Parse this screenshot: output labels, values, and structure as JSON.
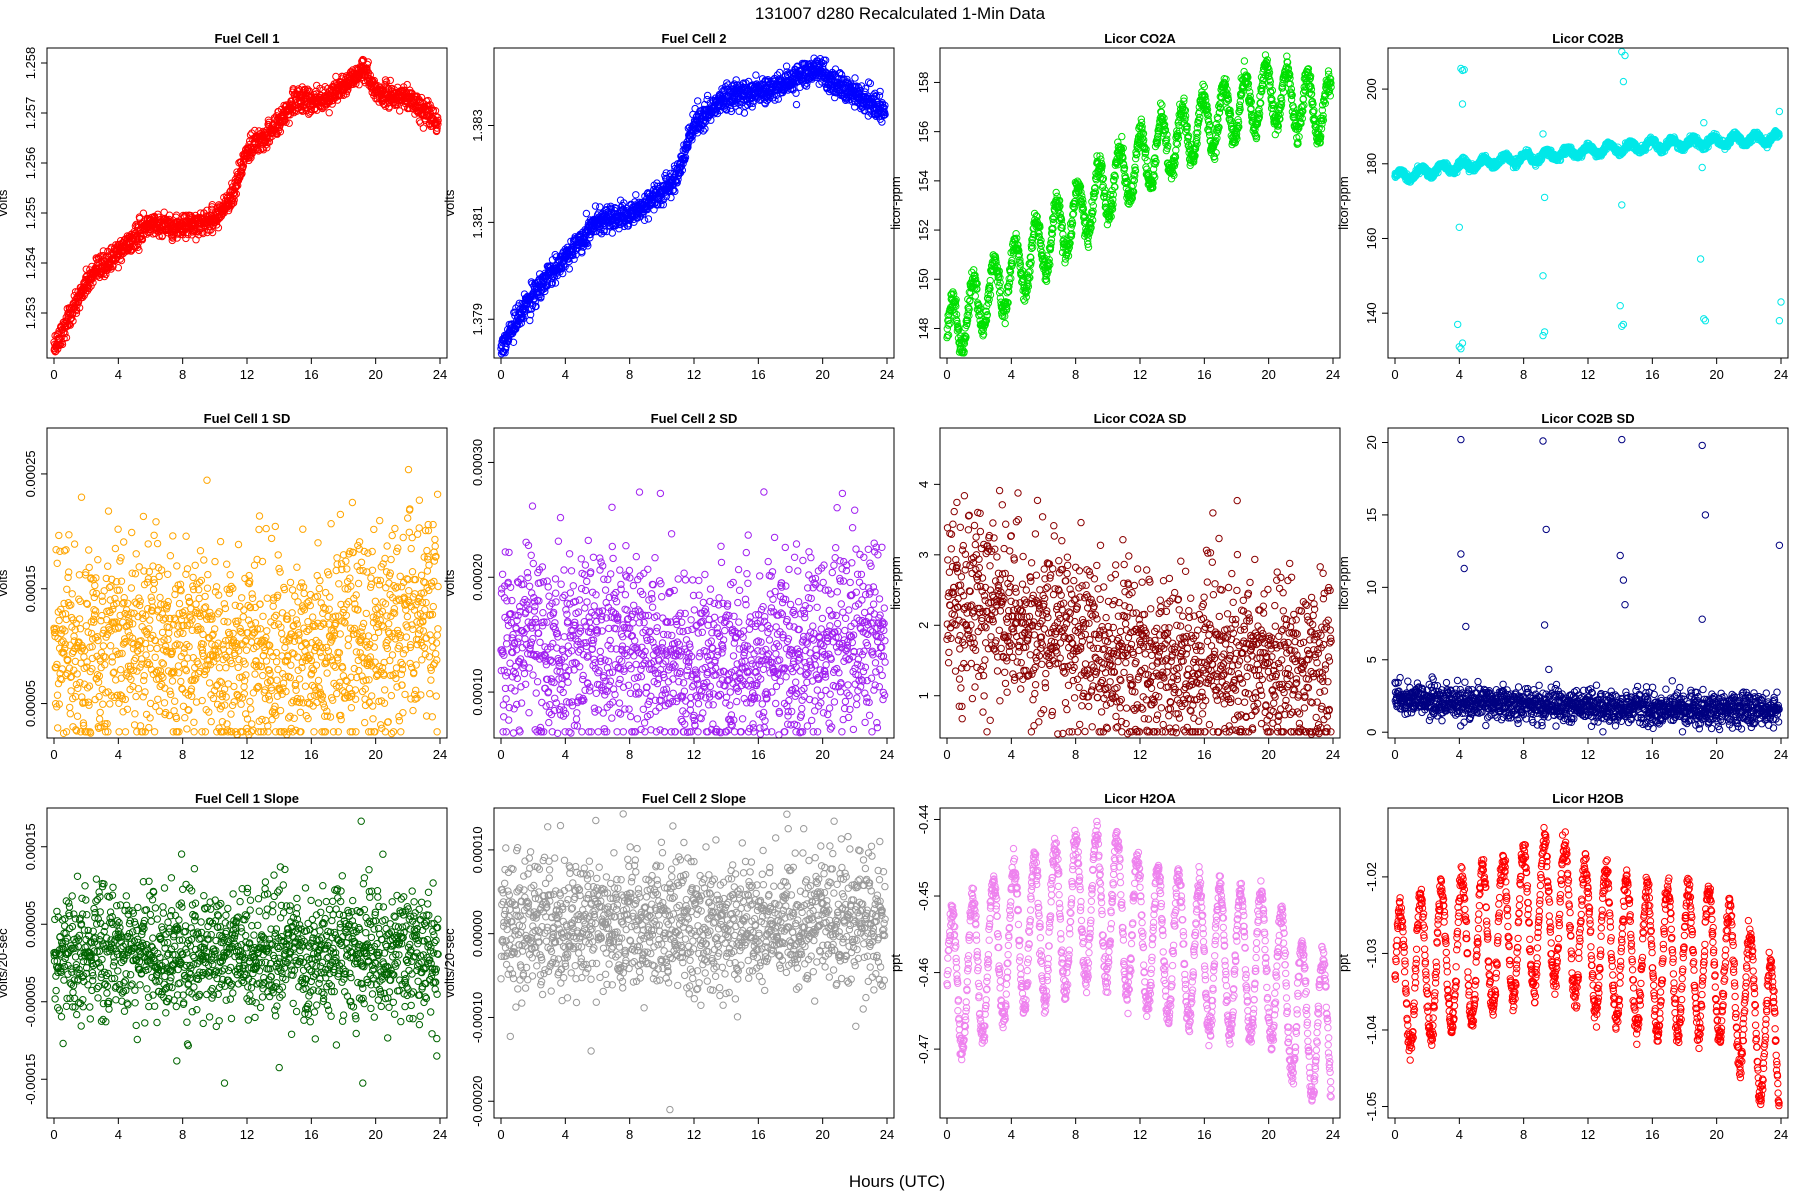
{
  "figure": {
    "title": "131007    d280    Recalculated 1-Min Data",
    "xlabel": "Hours (UTC)"
  },
  "chart_data": [
    {
      "type": "scatter",
      "title": "Fuel Cell 1",
      "ylabel": "volts",
      "color": "#ff0000",
      "xlim": [
        0,
        24
      ],
      "ylim": [
        1.2521,
        1.2583
      ],
      "xticks": [
        0,
        4,
        8,
        12,
        16,
        20,
        24
      ],
      "yticks": [
        1.253,
        1.254,
        1.255,
        1.256,
        1.257,
        1.258
      ],
      "yticklabels": [
        "1.253",
        "1.254",
        "1.255",
        "1.256",
        "1.257",
        "1.258"
      ],
      "x": [
        0,
        2,
        4,
        6,
        8,
        10,
        11,
        12,
        14,
        15,
        16,
        18,
        19.2,
        20,
        22,
        23.8
      ],
      "y": [
        1.2523,
        1.2536,
        1.2542,
        1.2548,
        1.2547,
        1.2549,
        1.2553,
        1.2562,
        1.2568,
        1.2573,
        1.2572,
        1.2575,
        1.2579,
        1.2574,
        1.2573,
        1.2568
      ],
      "noise": 0.0002,
      "trend_points": true
    },
    {
      "type": "scatter",
      "title": "Fuel Cell 2",
      "ylabel": "volts",
      "color": "#0000ff",
      "xlim": [
        0,
        24
      ],
      "ylim": [
        1.3782,
        1.3846
      ],
      "xticks": [
        0,
        4,
        8,
        12,
        16,
        20,
        24
      ],
      "yticks": [
        1.379,
        1.381,
        1.383
      ],
      "yticklabels": [
        "1.379",
        "1.381",
        "1.383"
      ],
      "x": [
        0,
        2,
        4,
        6,
        8,
        10,
        11,
        12,
        14,
        16,
        18,
        19.5,
        21,
        23.8
      ],
      "y": [
        1.3784,
        1.3795,
        1.3803,
        1.381,
        1.3812,
        1.3816,
        1.382,
        1.383,
        1.3836,
        1.3837,
        1.3839,
        1.3842,
        1.3838,
        1.3833
      ],
      "noise": 0.00022,
      "trend_points": true
    },
    {
      "type": "scatter",
      "title": "Licor CO2A",
      "ylabel": "licor-ppm",
      "color": "#00e000",
      "xlim": [
        0,
        24
      ],
      "ylim": [
        146.8,
        159.4
      ],
      "xticks": [
        0,
        4,
        8,
        12,
        16,
        20,
        24
      ],
      "yticks": [
        148,
        150,
        152,
        154,
        156,
        158
      ],
      "yticklabels": [
        "148",
        "150",
        "152",
        "154",
        "156",
        "158"
      ],
      "x": [
        0,
        4,
        8,
        12,
        16,
        20,
        23.8
      ],
      "y": [
        147.8,
        150.2,
        152.6,
        154.8,
        156.3,
        157.6,
        156.8
      ],
      "noise": 0.4,
      "wave_amp": 1.2,
      "wave_period": 1.3,
      "trend_points": true
    },
    {
      "type": "scatter",
      "title": "Licor CO2B",
      "ylabel": "licor-ppm",
      "color": "#00e8e8",
      "xlim": [
        0,
        24
      ],
      "ylim": [
        128,
        211
      ],
      "xticks": [
        0,
        4,
        8,
        12,
        16,
        20,
        24
      ],
      "yticks": [
        140,
        160,
        180,
        200
      ],
      "yticklabels": [
        "140",
        "160",
        "180",
        "200"
      ],
      "x": [
        0,
        4,
        8,
        12,
        16,
        20,
        24
      ],
      "y": [
        176.5,
        179.5,
        181.5,
        183.5,
        185,
        186,
        187
      ],
      "noise": 0.8,
      "wave_amp": 1.2,
      "wave_period": 1.3,
      "trend_points": true,
      "outliers": [
        [
          4.1,
          205.5
        ],
        [
          4.2,
          205
        ],
        [
          4.3,
          205.2
        ],
        [
          4.2,
          196
        ],
        [
          4.0,
          163
        ],
        [
          3.9,
          137
        ],
        [
          4.0,
          131
        ],
        [
          4.1,
          130.5
        ],
        [
          4.2,
          132
        ],
        [
          9.2,
          188
        ],
        [
          9.3,
          171
        ],
        [
          9.2,
          150
        ],
        [
          9.3,
          135
        ],
        [
          9.2,
          134
        ],
        [
          14.1,
          210
        ],
        [
          14.3,
          209
        ],
        [
          14.2,
          202
        ],
        [
          14.1,
          169
        ],
        [
          14.0,
          142
        ],
        [
          14.2,
          137
        ],
        [
          14.1,
          136.5
        ],
        [
          19.2,
          191
        ],
        [
          19.1,
          179
        ],
        [
          19.0,
          154.5
        ],
        [
          19.2,
          138.5
        ],
        [
          19.3,
          138
        ],
        [
          23.9,
          194
        ],
        [
          24,
          143
        ],
        [
          23.9,
          138
        ]
      ]
    },
    {
      "type": "scatter",
      "title": "Fuel Cell 1 SD",
      "ylabel": "volts",
      "color": "#ffa500",
      "xlim": [
        0,
        24
      ],
      "ylim": [
        2e-05,
        0.00029
      ],
      "xticks": [
        0,
        4,
        8,
        12,
        16,
        20,
        24
      ],
      "yticks": [
        5e-05,
        0.00015,
        0.00025
      ],
      "yticklabels": [
        "0.00005",
        "0.00015",
        "0.00025"
      ],
      "x": [
        0,
        8,
        14,
        18,
        24
      ],
      "y": [
        0.0001,
        0.0001,
        9e-05,
        0.000105,
        0.000125
      ],
      "noise": 4.5e-05,
      "trend_points": false
    },
    {
      "type": "scatter",
      "title": "Fuel Cell 2 SD",
      "ylabel": "volts",
      "color": "#a020f0",
      "xlim": [
        0,
        24
      ],
      "ylim": [
        6e-05,
        0.00033
      ],
      "xticks": [
        0,
        4,
        8,
        12,
        16,
        20,
        24
      ],
      "yticks": [
        0.0001,
        0.0002,
        0.0003
      ],
      "yticklabels": [
        "0.00010",
        "0.00020",
        "0.00030"
      ],
      "x": [
        0,
        8,
        14,
        20,
        24
      ],
      "y": [
        0.000145,
        0.000135,
        0.00012,
        0.000135,
        0.00015
      ],
      "noise": 4.2e-05,
      "trend_points": false
    },
    {
      "type": "scatter",
      "title": "Licor CO2A SD",
      "ylabel": "licor-ppm",
      "color": "#8b0000",
      "xlim": [
        0,
        24
      ],
      "ylim": [
        0.4,
        4.8
      ],
      "xticks": [
        0,
        4,
        8,
        12,
        16,
        20,
        24
      ],
      "yticks": [
        1,
        2,
        3,
        4
      ],
      "yticklabels": [
        "1",
        "2",
        "3",
        "4"
      ],
      "x": [
        0,
        2,
        8,
        12,
        18,
        24
      ],
      "y": [
        2.5,
        2.3,
        1.8,
        1.4,
        1.5,
        1.4
      ],
      "noise": 0.65,
      "trend_points": false
    },
    {
      "type": "scatter",
      "title": "Licor CO2B SD",
      "ylabel": "licor-ppm",
      "color": "#000080",
      "xlim": [
        0,
        24
      ],
      "ylim": [
        -0.4,
        21
      ],
      "xticks": [
        0,
        4,
        8,
        12,
        16,
        20,
        24
      ],
      "yticks": [
        0,
        5,
        10,
        15,
        20
      ],
      "yticklabels": [
        "0",
        "5",
        "10",
        "15",
        "20"
      ],
      "x": [
        0,
        8,
        16,
        24
      ],
      "y": [
        2.3,
        1.9,
        1.6,
        1.6
      ],
      "noise": 0.55,
      "trend_points": false,
      "outliers": [
        [
          4.1,
          20.2
        ],
        [
          4.1,
          12.3
        ],
        [
          4.3,
          11.3
        ],
        [
          4.4,
          7.3
        ],
        [
          9.2,
          20.1
        ],
        [
          9.4,
          14
        ],
        [
          9.3,
          7.4
        ],
        [
          14.1,
          20.2
        ],
        [
          14.0,
          12.2
        ],
        [
          14.2,
          10.5
        ],
        [
          14.3,
          8.8
        ],
        [
          19.1,
          19.8
        ],
        [
          19.3,
          15
        ],
        [
          19.1,
          7.8
        ],
        [
          23.9,
          12.9
        ]
      ]
    },
    {
      "type": "scatter",
      "title": "Fuel Cell 1 Slope",
      "ylabel": "volts/20-sec",
      "color": "#006400",
      "xlim": [
        0,
        24
      ],
      "ylim": [
        -0.0002,
        0.0002
      ],
      "xticks": [
        0,
        4,
        8,
        12,
        16,
        20,
        24
      ],
      "yticks": [
        -0.00015,
        -5e-05,
        5e-05,
        0.00015
      ],
      "yticklabels": [
        "-0.00015",
        "-0.00005",
        "0.00005",
        "0.00015"
      ],
      "x": [
        0,
        24
      ],
      "y": [
        1.2e-05,
        1.2e-05
      ],
      "noise": 4e-05,
      "trend_points": false,
      "outliers": [
        [
          19.1,
          0.000183
        ],
        [
          19.3,
          0.00011
        ],
        [
          7.3,
          0.00011
        ],
        [
          14,
          9.4e-05
        ],
        [
          10.6,
          -0.000155
        ],
        [
          14,
          -0.000135
        ],
        [
          19.2,
          -0.000155
        ],
        [
          23.8,
          -0.00012
        ]
      ]
    },
    {
      "type": "scatter",
      "title": "Fuel Cell 2 Slope",
      "ylabel": "volts/20-sec",
      "color": "#999999",
      "xlim": [
        0,
        24
      ],
      "ylim": [
        -0.00022,
        0.00015
      ],
      "xticks": [
        0,
        4,
        8,
        12,
        16,
        20,
        24
      ],
      "yticks": [
        -0.0002,
        -0.0001,
        0,
        0.0001
      ],
      "yticklabels": [
        "-0.00020",
        "-0.00010",
        "0.00000",
        "0.00010"
      ],
      "x": [
        0,
        24
      ],
      "y": [
        1.2e-05,
        1.2e-05
      ],
      "noise": 4e-05,
      "trend_points": false,
      "outliers": [
        [
          10.5,
          -0.00021
        ],
        [
          5.6,
          -0.00014
        ],
        [
          7.6,
          0.000143
        ],
        [
          3.7,
          0.000129
        ]
      ]
    },
    {
      "type": "scatter",
      "title": "Licor H2OA",
      "ylabel": "ppt",
      "color": "#ee82ee",
      "xlim": [
        0,
        24
      ],
      "ylim": [
        -0.479,
        -0.4385
      ],
      "xticks": [
        0,
        4,
        8,
        12,
        16,
        20,
        24
      ],
      "yticks": [
        -0.47,
        -0.46,
        -0.45,
        -0.44
      ],
      "yticklabels": [
        "-0.47",
        "-0.46",
        "-0.45",
        "-0.44"
      ],
      "x": [
        0,
        4,
        8,
        10,
        12,
        16,
        20,
        22,
        23.8
      ],
      "y": [
        -0.462,
        -0.456,
        -0.452,
        -0.451,
        -0.455,
        -0.458,
        -0.459,
        -0.466,
        -0.468
      ],
      "noise": 0.0015,
      "wave_amp": 0.0095,
      "wave_period": 1.28,
      "trend_points": true
    },
    {
      "type": "scatter",
      "title": "Licor H2OB",
      "ylabel": "ppt",
      "color": "#ff0000",
      "xlim": [
        0,
        24
      ],
      "ylim": [
        -1.0515,
        -1.011
      ],
      "xticks": [
        0,
        4,
        8,
        12,
        16,
        20,
        24
      ],
      "yticks": [
        -1.05,
        -1.04,
        -1.03,
        -1.02
      ],
      "yticklabels": [
        "-1.05",
        "-1.04",
        "-1.03",
        "-1.02"
      ],
      "x": [
        0,
        4,
        8,
        10,
        12,
        16,
        20,
        22,
        23.8
      ],
      "y": [
        -1.034,
        -1.03,
        -1.026,
        -1.024,
        -1.028,
        -1.031,
        -1.031,
        -1.037,
        -1.042
      ],
      "noise": 0.0015,
      "wave_amp": 0.0095,
      "wave_period": 1.28,
      "trend_points": true
    }
  ]
}
